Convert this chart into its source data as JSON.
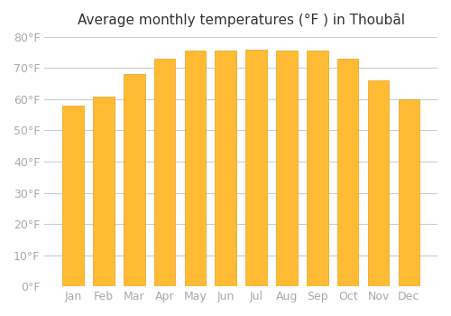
{
  "title": "Average monthly temperatures (°F ) in Thoubāl",
  "months": [
    "Jan",
    "Feb",
    "Mar",
    "Apr",
    "May",
    "Jun",
    "Jul",
    "Aug",
    "Sep",
    "Oct",
    "Nov",
    "Dec"
  ],
  "values": [
    58,
    61,
    68,
    73,
    75.5,
    75.5,
    76,
    75.5,
    75.5,
    73,
    66,
    60
  ],
  "bar_color": "#FFBB33",
  "bar_edge_color": "#E8A020",
  "ylim": [
    0,
    80
  ],
  "yticks": [
    0,
    10,
    20,
    30,
    40,
    50,
    60,
    70,
    80
  ],
  "ytick_labels": [
    "0°F",
    "10°F",
    "20°F",
    "30°F",
    "40°F",
    "50°F",
    "60°F",
    "70°F",
    "80°F"
  ],
  "background_color": "#ffffff",
  "grid_color": "#cccccc",
  "title_fontsize": 11,
  "tick_fontsize": 9,
  "tick_color": "#aaaaaa",
  "bar_width": 0.7
}
